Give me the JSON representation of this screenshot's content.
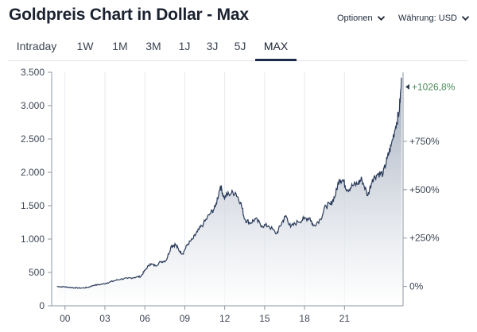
{
  "header": {
    "title": "Goldpreis Chart in Dollar - Max",
    "options_label": "Optionen",
    "currency_label": "Währung: USD"
  },
  "tabs": [
    {
      "label": "Intraday",
      "active": false
    },
    {
      "label": "1W",
      "active": false
    },
    {
      "label": "1M",
      "active": false
    },
    {
      "label": "3M",
      "active": false
    },
    {
      "label": "1J",
      "active": false
    },
    {
      "label": "3J",
      "active": false
    },
    {
      "label": "5J",
      "active": false
    },
    {
      "label": "MAX",
      "active": true
    }
  ],
  "colors": {
    "line": "#2a3a5a",
    "area_top": "#9aa6b8",
    "area_bottom": "#ffffff",
    "tab_accent": "#1d2b4a",
    "positive": "#4c8b5a"
  },
  "chart_data": {
    "type": "area",
    "title": "",
    "xlabel": "",
    "ylabel": "",
    "x_tick_labels": [
      "00",
      "03",
      "06",
      "09",
      "12",
      "15",
      "18",
      "21"
    ],
    "x_tick_years": [
      2000,
      2003,
      2006,
      2009,
      2012,
      2015,
      2018,
      2021
    ],
    "y_ticks": [
      0,
      500,
      1000,
      1500,
      2000,
      2500,
      3000,
      3500
    ],
    "y_tick_labels": [
      "0",
      "500",
      "1.000",
      "1.500",
      "2.000",
      "2.500",
      "3.000",
      "3.500"
    ],
    "ylim": [
      0,
      3500
    ],
    "xlim": [
      1999.0,
      2025.4
    ],
    "grid": "vertical",
    "right_axis": {
      "ticks": [
        "0%",
        "+250%",
        "+500%",
        "+750%"
      ],
      "highlight": "+1026,8%"
    },
    "series": [
      {
        "x": [
          1999.4,
          1999.8,
          2000.2,
          2000.7,
          2001.2,
          2001.7,
          2002.2,
          2002.7,
          2003.2,
          2003.7,
          2004.2,
          2004.7,
          2005.2,
          2005.7,
          2006.0,
          2006.4,
          2006.8,
          2007.2,
          2007.6,
          2008.0,
          2008.3,
          2008.6,
          2008.85,
          2009.2,
          2009.6,
          2009.95,
          2010.4,
          2010.9,
          2011.3,
          2011.68,
          2011.95,
          2012.3,
          2012.8,
          2013.2,
          2013.5,
          2013.9,
          2014.3,
          2014.8,
          2015.3,
          2015.9,
          2016.3,
          2016.6,
          2016.95,
          2017.5,
          2017.95,
          2018.4,
          2018.65,
          2019.2,
          2019.6,
          2019.95,
          2020.3,
          2020.6,
          2020.9,
          2021.2,
          2021.6,
          2022.0,
          2022.3,
          2022.75,
          2023.1,
          2023.5,
          2023.9,
          2024.2,
          2024.5,
          2024.85,
          2025.1,
          2025.3
        ],
        "y": [
          290,
          285,
          280,
          270,
          265,
          275,
          310,
          320,
          345,
          375,
          400,
          410,
          425,
          440,
          530,
          630,
          600,
          660,
          680,
          900,
          920,
          820,
          780,
          920,
          1000,
          1110,
          1230,
          1380,
          1480,
          1800,
          1620,
          1680,
          1700,
          1550,
          1300,
          1240,
          1300,
          1200,
          1200,
          1080,
          1250,
          1350,
          1180,
          1260,
          1300,
          1320,
          1200,
          1300,
          1500,
          1520,
          1650,
          1900,
          1880,
          1740,
          1800,
          1830,
          1900,
          1650,
          1900,
          1980,
          1980,
          2200,
          2400,
          2700,
          2900,
          3400
        ]
      }
    ]
  }
}
